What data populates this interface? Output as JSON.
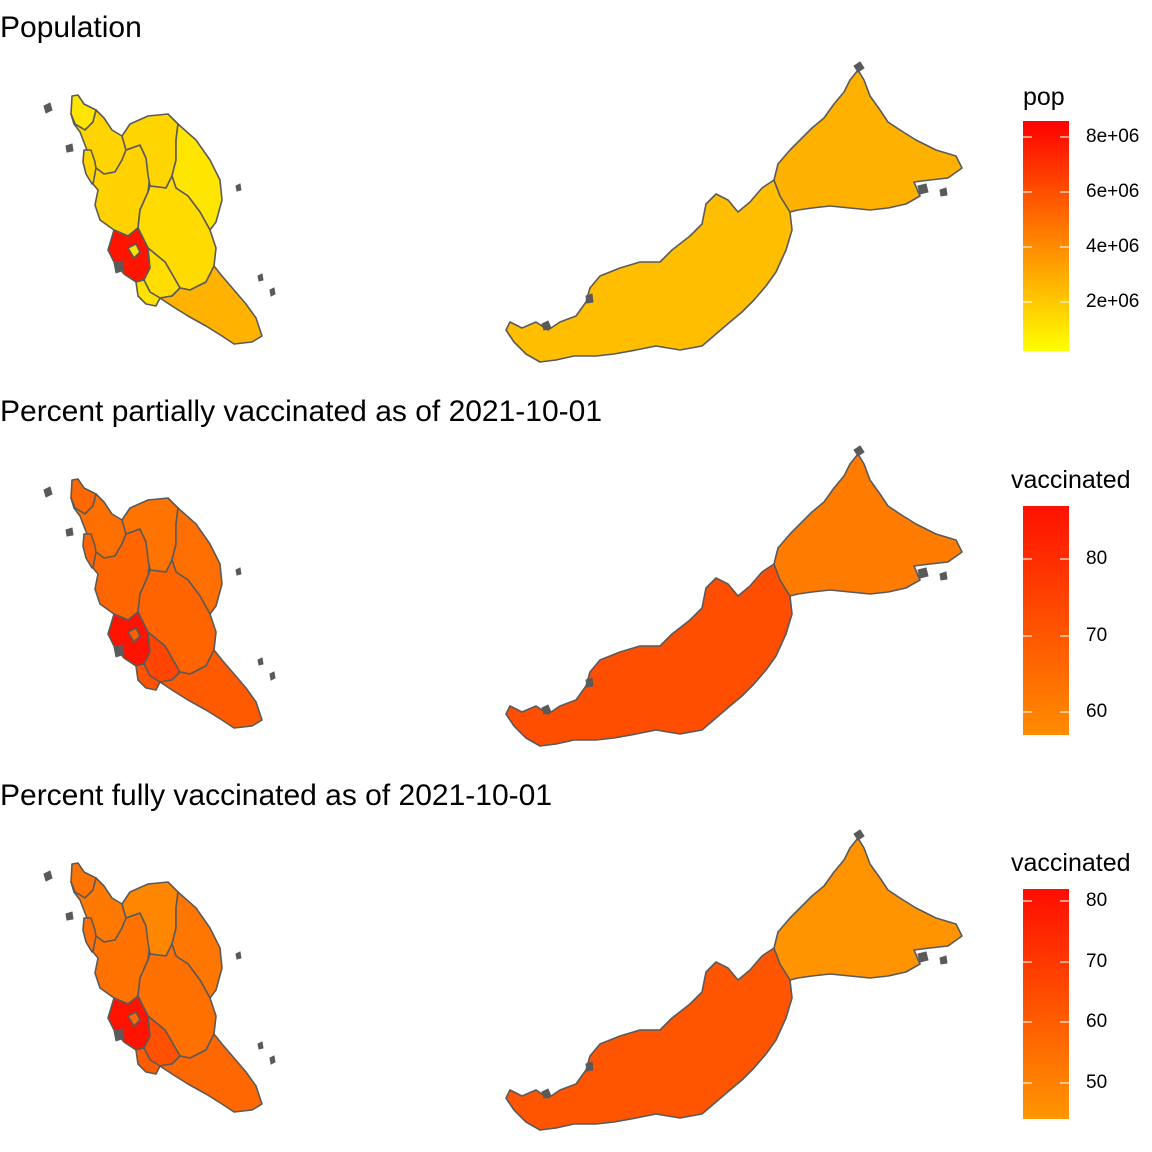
{
  "panels": [
    {
      "title": "Population",
      "legend": {
        "title": "pop",
        "ticks": [
          "8e+06",
          "6e+06",
          "4e+06",
          "2e+06"
        ],
        "tick_values": [
          8000000,
          6000000,
          4000000,
          2000000
        ],
        "range": [
          200000,
          8600000
        ],
        "colors": [
          "#ffff00",
          "#ff0000"
        ]
      },
      "fills": {
        "perlis": "#ffe600",
        "kedah": "#ffd400",
        "penang": "#ffd400",
        "perak": "#ffd200",
        "kelantan": "#ffd500",
        "terengganu": "#ffe600",
        "pahang": "#ffdb00",
        "selangor": "#ff1400",
        "kl": "#ffe000",
        "nsembilan": "#ffdd00",
        "melaka": "#ffe300",
        "johor": "#ffb300",
        "sarawak": "#ffbe00",
        "sabah": "#ffb100"
      }
    },
    {
      "title": "Percent partially vaccinated as of 2021-10-01",
      "legend": {
        "title": "vaccinated",
        "ticks": [
          "80",
          "70",
          "60"
        ],
        "tick_values": [
          80,
          70,
          60
        ],
        "range": [
          57,
          87
        ],
        "colors": [
          "#ff8c00",
          "#ff1100"
        ]
      },
      "fills": {
        "perlis": "#ff6700",
        "kedah": "#ff6f00",
        "penang": "#ff6400",
        "perak": "#ff6600",
        "kelantan": "#ff7300",
        "terengganu": "#ff6e00",
        "pahang": "#ff6400",
        "selangor": "#ff1200",
        "kl": "#ff6000",
        "nsembilan": "#ff4500",
        "melaka": "#ff5300",
        "johor": "#ff5a00",
        "sarawak": "#ff4e00",
        "sabah": "#ff7c00"
      }
    },
    {
      "title": "Percent fully vaccinated as of 2021-10-01",
      "legend": {
        "title": "vaccinated",
        "ticks": [
          "80",
          "70",
          "60",
          "50"
        ],
        "tick_values": [
          80,
          70,
          60,
          50
        ],
        "range": [
          44,
          82
        ],
        "colors": [
          "#ff9600",
          "#ff0d00"
        ]
      },
      "fills": {
        "perlis": "#ff7300",
        "kedah": "#ff7800",
        "penang": "#ff6e00",
        "perak": "#ff7200",
        "kelantan": "#ff8600",
        "terengganu": "#ff7600",
        "pahang": "#ff7000",
        "selangor": "#ff1300",
        "kl": "#ff6a00",
        "nsembilan": "#ff5000",
        "melaka": "#ff5c00",
        "johor": "#ff6800",
        "sarawak": "#ff5500",
        "sabah": "#ff9300"
      }
    }
  ]
}
